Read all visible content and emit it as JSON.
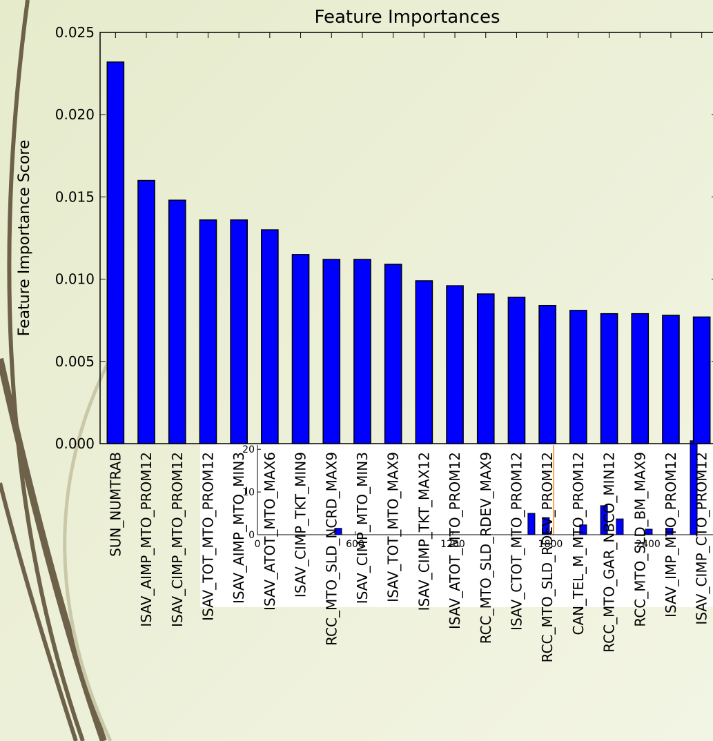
{
  "chart_data": [
    {
      "type": "bar",
      "title": "Feature Importances",
      "ylabel": "Feature Importance Score",
      "categories": [
        "SUN_NUMTRAB",
        "ISAV_AIMP_MTO_PROM12",
        "ISAV_CIMP_MTO_PROM12",
        "ISAV_TOT_MTO_PROM12",
        "ISAV_AIMP_MTO_MIN3",
        "ISAV_ATOT_MTO_MAX6",
        "ISAV_CIMP_TKT_MIN9",
        "RCC_MTO_SLD_NCRD_MAX9",
        "ISAV_CIMP_MTO_MIN3",
        "ISAV_TOT_MTO_MAX9",
        "ISAV_CIMP_TKT_MAX12",
        "ISAV_ATOT_MTO_PROM12",
        "RCC_MTO_SLD_RDEV_MAX9",
        "ISAV_CTOT_MTO_PROM12",
        "RCC_MTO_SLD_RDEV_PROM12",
        "CAN_TEL_M_MTO_PROM12",
        "RCC_MTO_GAR_NBCO_MIN12",
        "RCC_MTO_SLD_BM_MAX9",
        "ISAV_IMP_MTO_PROM12",
        "ISAV_CIMP_CTO_PROM12"
      ],
      "values": [
        0.0232,
        0.016,
        0.0148,
        0.0136,
        0.0136,
        0.013,
        0.0115,
        0.0112,
        0.0112,
        0.0109,
        0.0099,
        0.0096,
        0.0091,
        0.0089,
        0.0084,
        0.0081,
        0.0079,
        0.0079,
        0.0078,
        0.0077
      ],
      "color": "#0000ff",
      "ylim": [
        0,
        0.025
      ],
      "yticks": [
        {
          "value": 0,
          "label": "0.000"
        },
        {
          "value": 0.005,
          "label": "0.005"
        },
        {
          "value": 0.01,
          "label": "0.010"
        },
        {
          "value": 0.015,
          "label": "0.015"
        },
        {
          "value": 0.02,
          "label": "0.020"
        },
        {
          "value": 0.025,
          "label": "0.025"
        }
      ]
    },
    {
      "type": "bar",
      "x": [
        496,
        1683,
        1772,
        2001,
        2129,
        2226,
        2404,
        2531,
        2680
      ],
      "values": [
        1.5,
        5,
        4,
        2.3,
        6.8,
        3.7,
        1.3,
        1.5,
        22
      ],
      "color": "#0000ff",
      "xlim": [
        0,
        2800
      ],
      "ylim": [
        0,
        21
      ],
      "xticks": [
        0,
        600,
        1200,
        1800,
        2400
      ],
      "yticks": [
        0,
        10,
        20
      ],
      "vline": 1820,
      "vline_color": "#ff7f0e"
    }
  ]
}
